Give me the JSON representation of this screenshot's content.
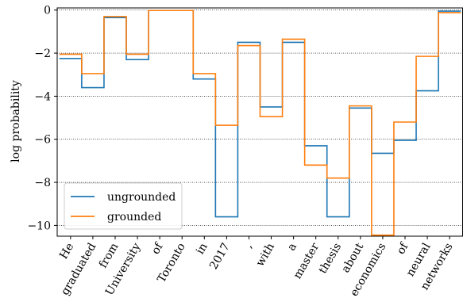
{
  "chart_data": {
    "type": "line",
    "step": true,
    "ylabel": "log probability",
    "ylim": [
      -10.5,
      0.1
    ],
    "yticks": [
      0,
      -2,
      -4,
      -6,
      -8,
      -10
    ],
    "ytick_labels": [
      "0",
      "−2",
      "−4",
      "−6",
      "−8",
      "−10"
    ],
    "grid": "horizontal dotted",
    "legend_position": "lower-left",
    "categories": [
      "He",
      "graduated",
      "from",
      "University",
      "of",
      "Toronto",
      "in",
      "2017",
      ",",
      "with",
      "a",
      "master",
      "thesis",
      "about",
      "economics",
      "of",
      "neural",
      "networks"
    ],
    "series": [
      {
        "name": "ungrounded",
        "color": "#1f77b4",
        "values": [
          -2.25,
          -3.6,
          -0.35,
          -2.3,
          -0.02,
          -0.02,
          -3.2,
          -9.6,
          -1.5,
          -4.5,
          -1.5,
          -6.3,
          -9.6,
          -4.55,
          -6.65,
          -6.05,
          -3.75,
          -0.05
        ]
      },
      {
        "name": "grounded",
        "color": "#ff7f0e",
        "values": [
          -2.05,
          -2.95,
          -0.3,
          -2.05,
          -0.02,
          -0.02,
          -2.95,
          -5.35,
          -1.65,
          -4.95,
          -1.35,
          -7.2,
          -7.8,
          -4.45,
          -10.45,
          -5.2,
          -2.15,
          -0.12
        ]
      }
    ]
  }
}
